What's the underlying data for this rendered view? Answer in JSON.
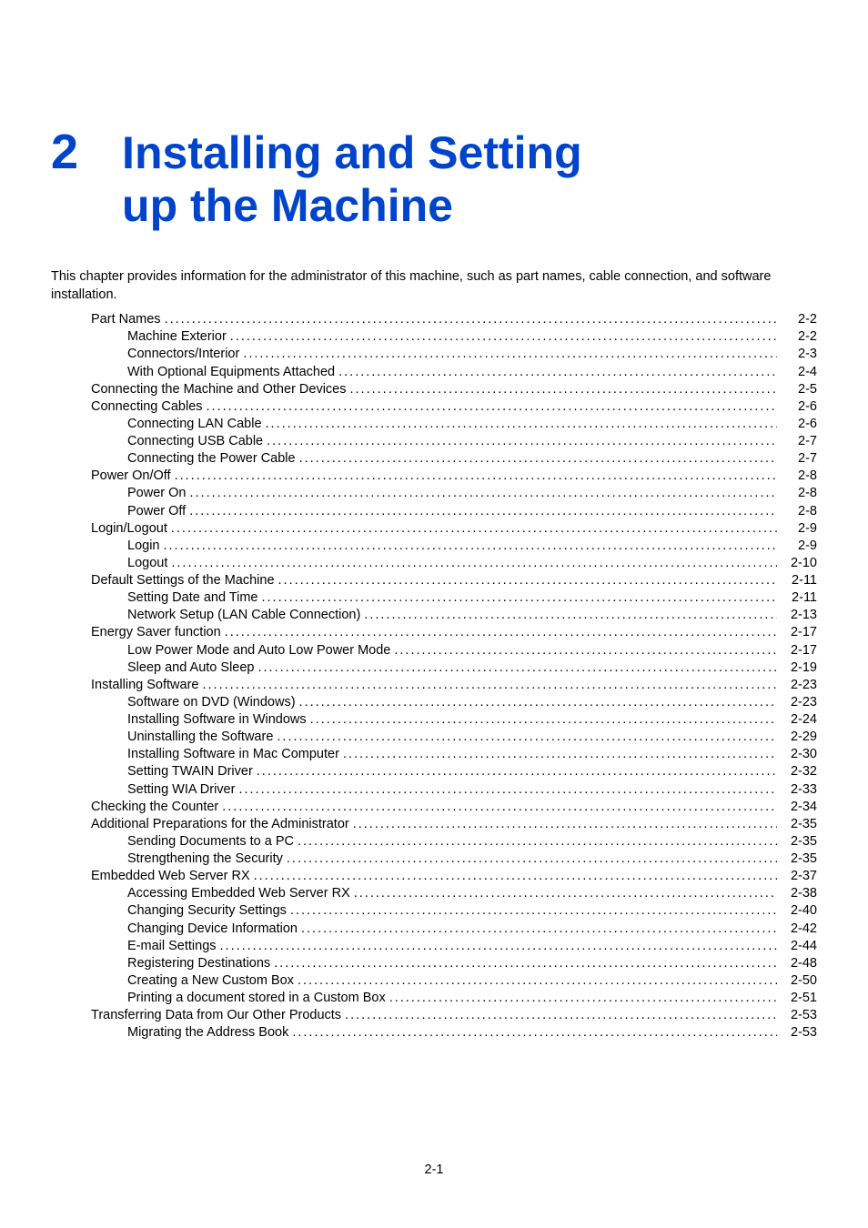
{
  "chapter": {
    "number": "2",
    "title_line1": "Installing and Setting",
    "title_line2": "up the Machine",
    "title_color": "#0044cc",
    "title_fontsize": 50,
    "number_fontsize": 54
  },
  "intro": "This chapter provides information for the administrator of this machine, such as part names, cable connection, and software installation.",
  "toc": [
    {
      "level": 1,
      "label": "Part Names",
      "page": "2-2"
    },
    {
      "level": 2,
      "label": "Machine Exterior",
      "page": "2-2"
    },
    {
      "level": 2,
      "label": "Connectors/Interior",
      "page": "2-3"
    },
    {
      "level": 2,
      "label": "With Optional Equipments Attached",
      "page": "2-4"
    },
    {
      "level": 1,
      "label": "Connecting the Machine and Other Devices",
      "page": "2-5"
    },
    {
      "level": 1,
      "label": "Connecting Cables",
      "page": "2-6"
    },
    {
      "level": 2,
      "label": "Connecting LAN Cable",
      "page": "2-6"
    },
    {
      "level": 2,
      "label": "Connecting USB Cable",
      "page": "2-7"
    },
    {
      "level": 2,
      "label": "Connecting the Power Cable",
      "page": "2-7"
    },
    {
      "level": 1,
      "label": "Power On/Off",
      "page": "2-8"
    },
    {
      "level": 2,
      "label": "Power On",
      "page": "2-8"
    },
    {
      "level": 2,
      "label": "Power Off",
      "page": "2-8"
    },
    {
      "level": 1,
      "label": "Login/Logout",
      "page": "2-9"
    },
    {
      "level": 2,
      "label": "Login",
      "page": "2-9"
    },
    {
      "level": 2,
      "label": "Logout",
      "page": "2-10"
    },
    {
      "level": 1,
      "label": "Default Settings of the Machine",
      "page": "2-11"
    },
    {
      "level": 2,
      "label": "Setting Date and Time",
      "page": "2-11"
    },
    {
      "level": 2,
      "label": "Network Setup (LAN Cable Connection)",
      "page": "2-13"
    },
    {
      "level": 1,
      "label": "Energy Saver function",
      "page": "2-17"
    },
    {
      "level": 2,
      "label": "Low Power Mode and Auto Low Power Mode",
      "page": "2-17"
    },
    {
      "level": 2,
      "label": "Sleep and Auto Sleep",
      "page": "2-19"
    },
    {
      "level": 1,
      "label": "Installing Software",
      "page": "2-23"
    },
    {
      "level": 2,
      "label": "Software on DVD (Windows)",
      "page": "2-23"
    },
    {
      "level": 2,
      "label": "Installing Software in Windows",
      "page": "2-24"
    },
    {
      "level": 2,
      "label": "Uninstalling the Software",
      "page": "2-29"
    },
    {
      "level": 2,
      "label": "Installing Software in Mac Computer",
      "page": "2-30"
    },
    {
      "level": 2,
      "label": "Setting TWAIN Driver",
      "page": "2-32"
    },
    {
      "level": 2,
      "label": "Setting WIA Driver",
      "page": "2-33"
    },
    {
      "level": 1,
      "label": "Checking the Counter",
      "page": "2-34"
    },
    {
      "level": 1,
      "label": "Additional Preparations for the Administrator",
      "page": "2-35"
    },
    {
      "level": 2,
      "label": "Sending Documents to a PC",
      "page": "2-35"
    },
    {
      "level": 2,
      "label": "Strengthening the Security",
      "page": "2-35"
    },
    {
      "level": 1,
      "label": "Embedded Web Server RX",
      "page": "2-37"
    },
    {
      "level": 2,
      "label": "Accessing Embedded Web Server RX",
      "page": "2-38"
    },
    {
      "level": 2,
      "label": "Changing Security Settings",
      "page": "2-40"
    },
    {
      "level": 2,
      "label": "Changing Device Information",
      "page": "2-42"
    },
    {
      "level": 2,
      "label": "E-mail Settings",
      "page": "2-44"
    },
    {
      "level": 2,
      "label": "Registering Destinations",
      "page": "2-48"
    },
    {
      "level": 2,
      "label": "Creating a New Custom Box",
      "page": "2-50"
    },
    {
      "level": 2,
      "label": "Printing a document stored in a Custom Box",
      "page": "2-51"
    },
    {
      "level": 1,
      "label": "Transferring Data from Our Other Products",
      "page": "2-53"
    },
    {
      "level": 2,
      "label": "Migrating the Address Book",
      "page": "2-53"
    }
  ],
  "page_number": "2-1",
  "colors": {
    "text": "#000000",
    "heading": "#0044cc",
    "background": "#ffffff"
  },
  "typography": {
    "body_fontsize": 14.5,
    "body_lineheight": 1.32
  },
  "layout": {
    "indent_l1": 44,
    "indent_l2": 84
  }
}
